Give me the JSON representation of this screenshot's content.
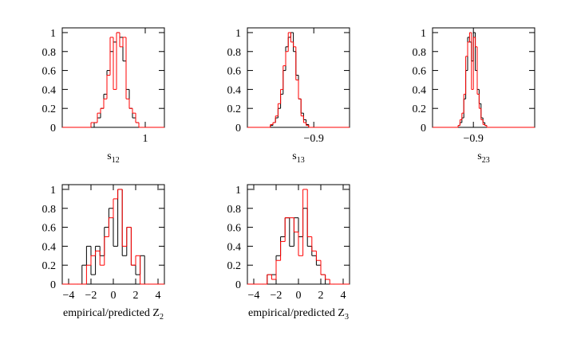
{
  "chart_data": [
    {
      "type": "histogram",
      "xlabel": "s",
      "xlabel_subscript": "12",
      "xlim": [
        0.87,
        1.03
      ],
      "xticks": [
        1
      ],
      "ylim": [
        0,
        1.05
      ],
      "yticks": [
        0,
        0.2,
        0.4,
        0.6,
        0.8,
        1
      ],
      "bins": [
        0.915,
        0.92,
        0.925,
        0.93,
        0.935,
        0.94,
        0.945,
        0.95,
        0.955,
        0.96,
        0.965,
        0.97,
        0.975,
        0.98,
        0.985,
        0.99,
        0.995
      ],
      "series": [
        {
          "color": "#000000",
          "values": [
            0,
            0.05,
            0.1,
            0.2,
            0.35,
            0.6,
            0.8,
            0.9,
            1,
            0.95,
            0.7,
            0.4,
            0.2,
            0.1,
            0.05,
            0
          ]
        },
        {
          "color": "#ff0000",
          "values": [
            0.05,
            0.05,
            0.15,
            0.2,
            0.3,
            0.55,
            0.95,
            0.4,
            1,
            0.85,
            0.95,
            0.3,
            0.2,
            0.15,
            0.05,
            0
          ]
        }
      ]
    },
    {
      "type": "histogram",
      "xlabel": "s",
      "xlabel_subscript": "13",
      "xlim": [
        -0.952,
        -0.872
      ],
      "xticks": [
        {
          "value": -0.9,
          "label": "−0.9"
        }
      ],
      "ylim": [
        0,
        1.05
      ],
      "yticks": [
        0,
        0.2,
        0.4,
        0.6,
        0.8,
        1
      ],
      "bins": [
        -0.934,
        -0.932,
        -0.93,
        -0.928,
        -0.926,
        -0.924,
        -0.922,
        -0.92,
        -0.918,
        -0.916,
        -0.914,
        -0.912,
        -0.91,
        -0.908,
        -0.906,
        -0.904,
        -0.902
      ],
      "series": [
        {
          "color": "#000000",
          "values": [
            0.02,
            0.05,
            0.1,
            0.2,
            0.35,
            0.6,
            0.85,
            0.95,
            1,
            0.8,
            0.55,
            0.3,
            0.15,
            0.08,
            0.03,
            0
          ]
        },
        {
          "color": "#ff0000",
          "values": [
            0.03,
            0.05,
            0.12,
            0.25,
            0.4,
            0.65,
            0.8,
            1,
            0.9,
            0.85,
            0.5,
            0.3,
            0.12,
            0.05,
            0.02,
            0
          ]
        }
      ]
    },
    {
      "type": "histogram",
      "xlabel": "s",
      "xlabel_subscript": "23",
      "xlim": [
        -0.932,
        -0.852
      ],
      "xticks": [
        {
          "value": -0.9,
          "label": "−0.9"
        }
      ],
      "ylim": [
        0,
        1.05
      ],
      "yticks": [
        0,
        0.2,
        0.4,
        0.6,
        0.8,
        1
      ],
      "bins": [
        -0.912,
        -0.9105,
        -0.909,
        -0.9075,
        -0.906,
        -0.9045,
        -0.903,
        -0.9015,
        -0.9,
        -0.8985,
        -0.897,
        -0.8955,
        -0.894,
        -0.8925,
        -0.891,
        -0.8895,
        -0.888
      ],
      "series": [
        {
          "color": "#000000",
          "values": [
            0.02,
            0.05,
            0.1,
            0.3,
            0.6,
            0.95,
            0.9,
            0.7,
            1,
            0.6,
            0.4,
            0.25,
            0.1,
            0.05,
            0.02,
            0
          ]
        },
        {
          "color": "#ff0000",
          "values": [
            0.02,
            0.08,
            0.15,
            0.35,
            0.75,
            0.9,
            1,
            0.4,
            0.95,
            0.85,
            0.35,
            0.2,
            0.08,
            0.03,
            0.02,
            0
          ]
        }
      ]
    },
    {
      "type": "histogram",
      "xlabel": "empirical/predicted Z",
      "xlabel_subscript": "2",
      "xlim": [
        -4.57,
        4.57
      ],
      "xticks": [
        {
          "value": -4,
          "label": "−4"
        },
        {
          "value": -2,
          "label": "−2"
        },
        0,
        2,
        4
      ],
      "ylim": [
        0,
        1.05
      ],
      "yticks": [
        0,
        0.2,
        0.4,
        0.6,
        0.8,
        1
      ],
      "bins": [
        -3.2,
        -2.8,
        -2.4,
        -2,
        -1.6,
        -1.2,
        -0.8,
        -0.4,
        0,
        0.4,
        0.8,
        1.2,
        1.6,
        2,
        2.4,
        2.8,
        3.2
      ],
      "series": [
        {
          "color": "#000000",
          "values": [
            0,
            0.2,
            0.4,
            0.1,
            0.4,
            0.3,
            0.6,
            0.8,
            0.4,
            1,
            0.3,
            0.6,
            0.2,
            0.1,
            0.3,
            0
          ]
        },
        {
          "color": "#ff0000",
          "values": [
            0,
            0,
            0.2,
            0.3,
            0.35,
            0.2,
            0.5,
            0.7,
            0.9,
            1,
            0.4,
            0.6,
            0.2,
            0.3,
            0,
            0
          ]
        }
      ]
    },
    {
      "type": "histogram",
      "xlabel": "empirical/predicted Z",
      "xlabel_subscript": "3",
      "xlim": [
        -4.57,
        4.57
      ],
      "xticks": [
        {
          "value": -4,
          "label": "−4"
        },
        {
          "value": -2,
          "label": "−2"
        },
        0,
        2,
        4
      ],
      "ylim": [
        0,
        1.05
      ],
      "yticks": [
        0,
        0.2,
        0.4,
        0.6,
        0.8,
        1
      ],
      "bins": [
        -3.2,
        -2.8,
        -2.4,
        -2,
        -1.6,
        -1.2,
        -0.8,
        -0.4,
        0,
        0.4,
        0.8,
        1.2,
        1.6,
        2,
        2.4,
        2.8,
        3.2
      ],
      "series": [
        {
          "color": "#000000",
          "values": [
            0,
            0.1,
            0.1,
            0.3,
            0.5,
            0.7,
            0.4,
            0.7,
            0.5,
            0.8,
            0.4,
            0.3,
            0.2,
            0.1,
            0,
            0
          ]
        },
        {
          "color": "#ff0000",
          "values": [
            0,
            0.1,
            0.05,
            0.25,
            0.45,
            0.7,
            0.7,
            0.55,
            0.3,
            1,
            0.5,
            0.35,
            0.25,
            0.1,
            0.05,
            0
          ]
        }
      ]
    }
  ]
}
